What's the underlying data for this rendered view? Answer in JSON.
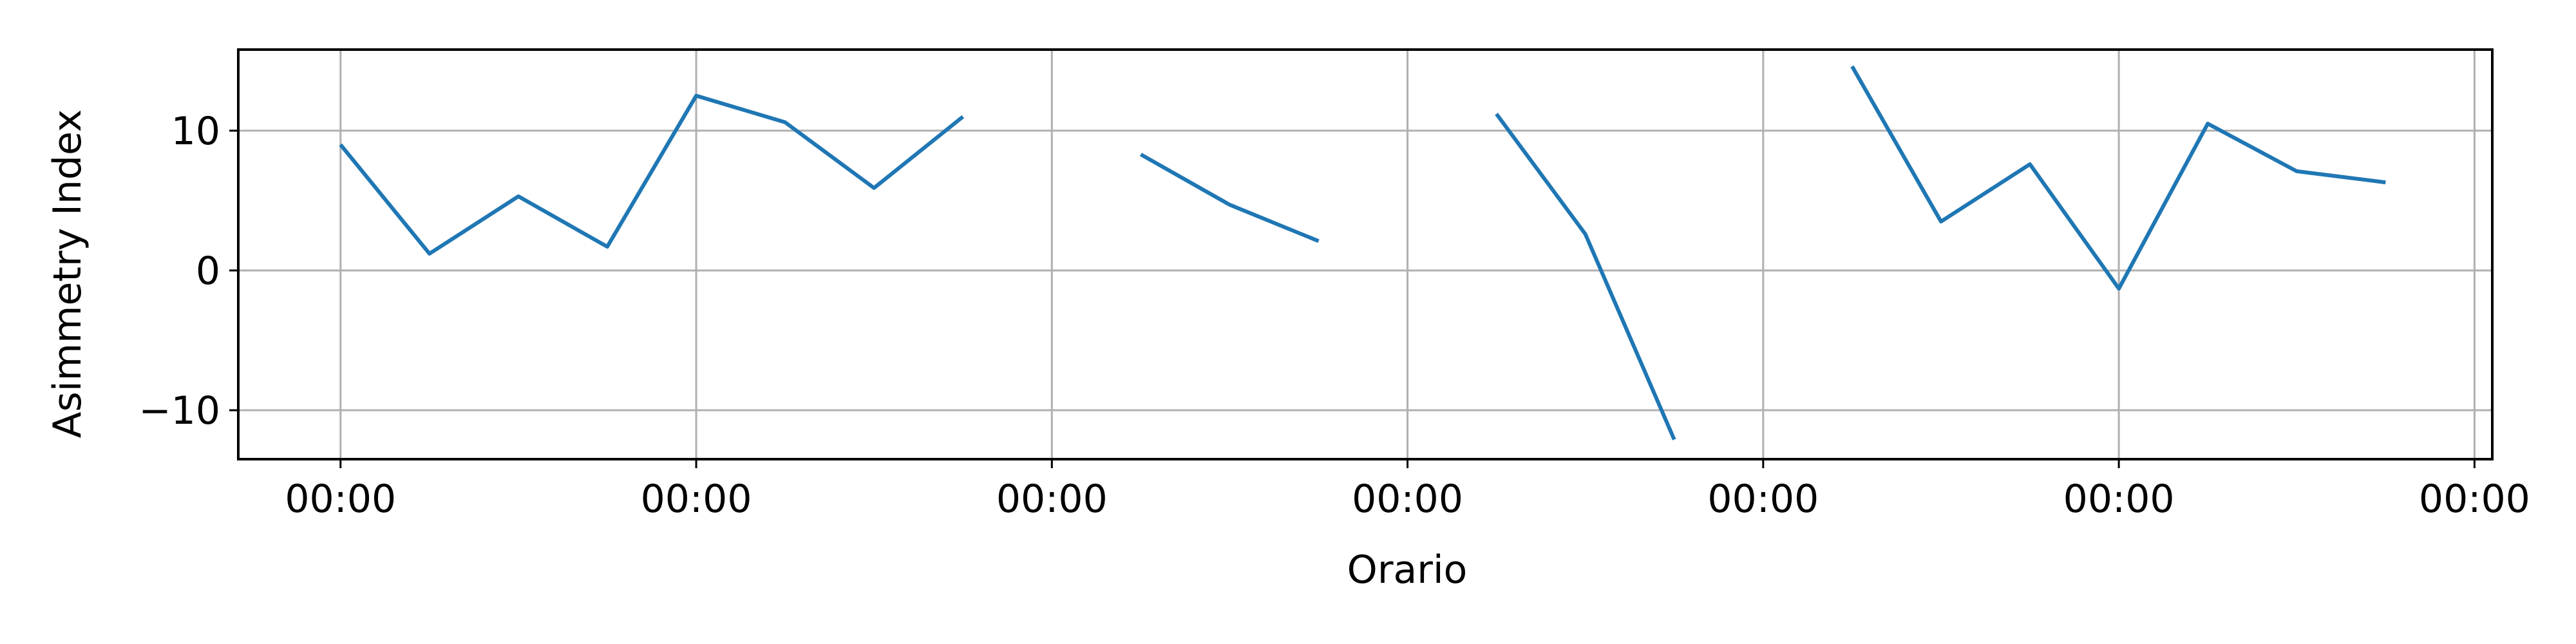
{
  "chart_data": {
    "type": "line",
    "title": "",
    "xlabel": "Orario",
    "ylabel": "Asimmetry Index",
    "grid": true,
    "colors": {
      "line": "#1f77b4",
      "grid": "#b0b0b0",
      "axes": "#000000"
    },
    "xlim": [
      -1.15,
      24.2
    ],
    "ylim": [
      -13.5,
      15.8
    ],
    "x_ticks": [
      0,
      4,
      8,
      12,
      16,
      20,
      24
    ],
    "x_tick_labels": [
      "00:00",
      "00:00",
      "00:00",
      "00:00",
      "00:00",
      "00:00",
      "00:00"
    ],
    "y_ticks": [
      -10,
      0,
      10
    ],
    "y_tick_labels": [
      "−10",
      "0",
      "10"
    ],
    "series": [
      {
        "x": [
          0,
          1,
          2,
          3,
          4,
          5,
          6,
          7,
          8,
          9,
          10,
          11,
          12,
          13,
          14,
          15,
          16,
          17,
          18,
          19,
          20,
          21,
          22,
          23
        ],
        "values": [
          9.0,
          1.2,
          5.3,
          1.7,
          12.5,
          10.6,
          5.9,
          11.0,
          null,
          8.3,
          4.7,
          2.1,
          null,
          11.2,
          2.6,
          -12.1,
          null,
          14.6,
          3.5,
          7.6,
          -1.3,
          10.5,
          7.1,
          6.3
        ]
      }
    ]
  }
}
